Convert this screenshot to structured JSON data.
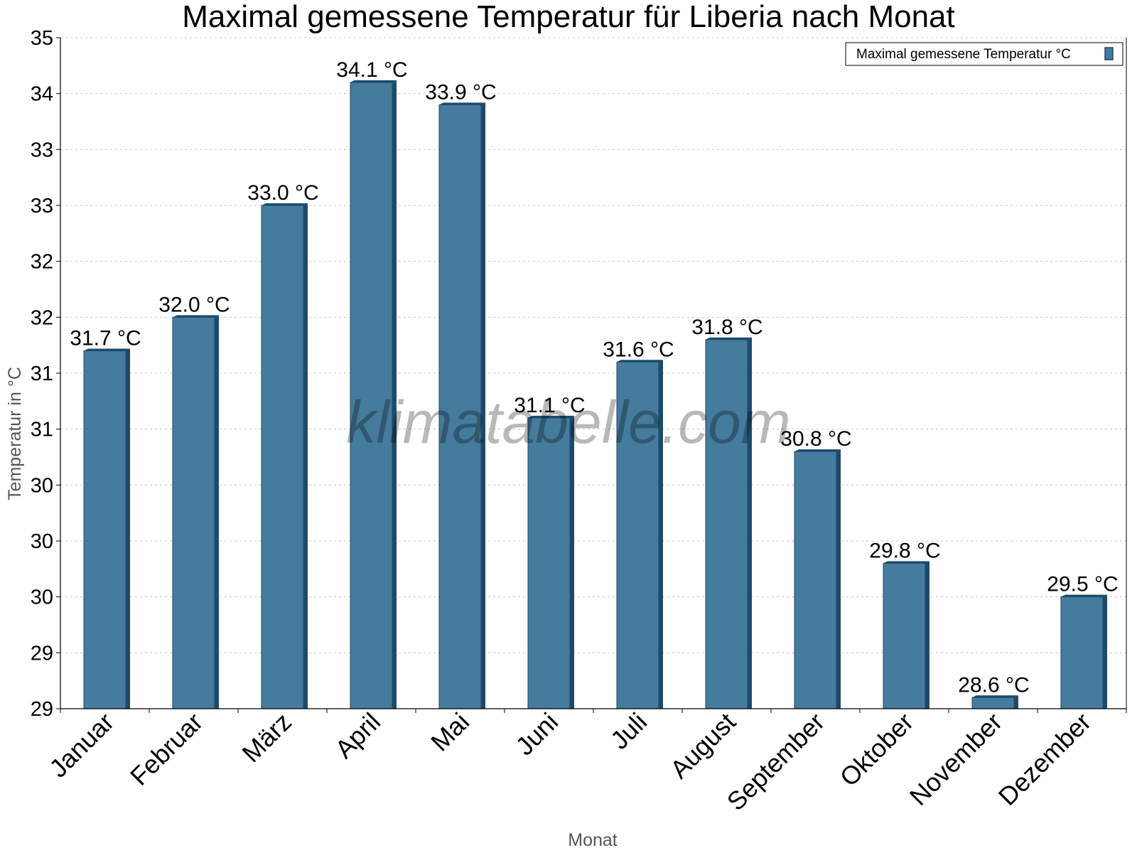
{
  "chart_data": {
    "type": "bar",
    "title": "Maximal gemessene Temperatur für Liberia nach Monat",
    "xlabel": "Monat",
    "ylabel": "Temperatur in °C",
    "categories": [
      "Januar",
      "Februar",
      "März",
      "April",
      "Mai",
      "Juni",
      "Juli",
      "August",
      "September",
      "Oktober",
      "November",
      "Dezember"
    ],
    "series": [
      {
        "name": "Maximal gemessene Temperatur °C",
        "values": [
          31.7,
          32.0,
          33.0,
          34.1,
          33.9,
          31.1,
          31.6,
          31.8,
          30.8,
          29.8,
          28.6,
          29.5
        ],
        "labels": [
          "31.7 °C",
          "32.0 °C",
          "33.0 °C",
          "34.1 °C",
          "33.9 °C",
          "31.1 °C",
          "31.6 °C",
          "31.8 °C",
          "30.8 °C",
          "29.8 °C",
          "28.6 °C",
          "29.5 °C"
        ]
      }
    ],
    "ylim": [
      28.5,
      34.5
    ],
    "yticks": [
      28.5,
      29.0,
      29.5,
      30.0,
      30.5,
      31.0,
      31.5,
      32.0,
      32.5,
      33.0,
      33.5,
      34.0,
      34.5
    ],
    "ytick_labels": [
      "29",
      "29",
      "30",
      "30",
      "30",
      "31",
      "31",
      "32",
      "32",
      "33",
      "33",
      "34",
      "35"
    ],
    "grid": true,
    "legend_position": "top-right",
    "bar_color": "#457b9d",
    "bar_edge_color": "#1d4a6b",
    "watermark": "klimatabelle.com"
  }
}
